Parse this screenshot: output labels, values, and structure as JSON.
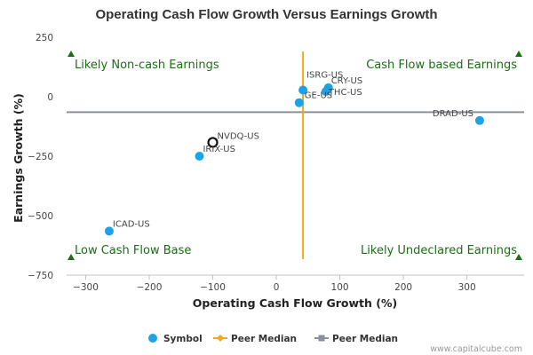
{
  "chart_data": {
    "type": "scatter",
    "title": "Operating Cash Flow Growth Versus Earnings Growth",
    "xlabel": "Operating Cash Flow Growth (%)",
    "ylabel": "Earnings Growth (%)",
    "xlim": [
      -330,
      390
    ],
    "ylim": [
      -750,
      250
    ],
    "xticks": [
      -300,
      -200,
      -100,
      0,
      100,
      200,
      300
    ],
    "yticks": [
      250,
      0,
      -250,
      -500,
      -750
    ],
    "grid": false,
    "legend_position": "bottom",
    "colors": {
      "symbol": "#1aa3e8",
      "highlight_stroke": "#111111",
      "peer_median_x": "#f5a623",
      "peer_median_y": "#8a8f99",
      "quadrant_text": "#1a6e14"
    },
    "points": [
      {
        "label": "ISRG-US",
        "x": 42,
        "y": 28,
        "highlight": false
      },
      {
        "label": "CRY-US",
        "x": 82,
        "y": 38,
        "highlight": false
      },
      {
        "label": "THC-US",
        "x": 78,
        "y": 22,
        "highlight": false
      },
      {
        "label": "GE-US",
        "x": 36,
        "y": -25,
        "highlight": false
      },
      {
        "label": "DRAD-US",
        "x": 320,
        "y": -100,
        "highlight": false
      },
      {
        "label": "NVDQ-US",
        "x": -100,
        "y": -192,
        "highlight": true
      },
      {
        "label": "IRIX-US",
        "x": -121,
        "y": -250,
        "highlight": false
      },
      {
        "label": "ICAD-US",
        "x": -263,
        "y": -565,
        "highlight": false
      }
    ],
    "peer_median_x": 42,
    "peer_median_y": -65,
    "quadrants": {
      "top_left": "Likely Non-cash Earnings",
      "top_right": "Cash Flow based Earnings",
      "bottom_left": "Low Cash Flow Base",
      "bottom_right": "Likely Undeclared Earnings"
    },
    "legend": [
      {
        "label": "Symbol",
        "kind": "circle"
      },
      {
        "label": "Peer Median",
        "kind": "diamond"
      },
      {
        "label": "Peer Median",
        "kind": "square"
      }
    ]
  },
  "credit": "www.capitalcube.com"
}
